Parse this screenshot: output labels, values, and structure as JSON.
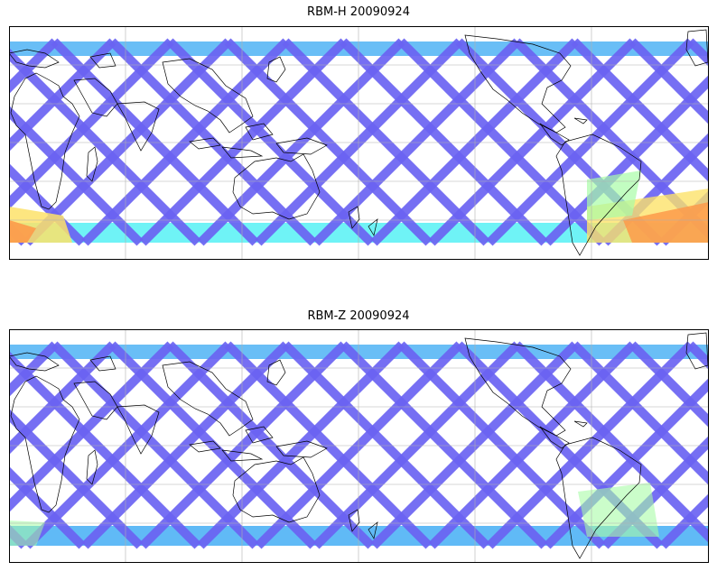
{
  "panels": [
    {
      "title": "RBM-H 20090924"
    },
    {
      "title": "RBM-Z 20090924"
    }
  ],
  "colors": {
    "swath_low": "#6b63f2",
    "swath_mid": "#4fb3f5",
    "swath_cyan": "#5ff2f5",
    "swath_green": "#a8fca6",
    "swath_yellow": "#fde26a",
    "swath_orange": "#fd9a4a",
    "coastline": "#000000",
    "gridline": "#b0b0b0",
    "frame": "#000000"
  },
  "map": {
    "projection": "cylindrical, centered near 120E",
    "gridlines": true,
    "data_coverage": "satellite swaths, crossing pattern",
    "colorbar_shown": false
  }
}
